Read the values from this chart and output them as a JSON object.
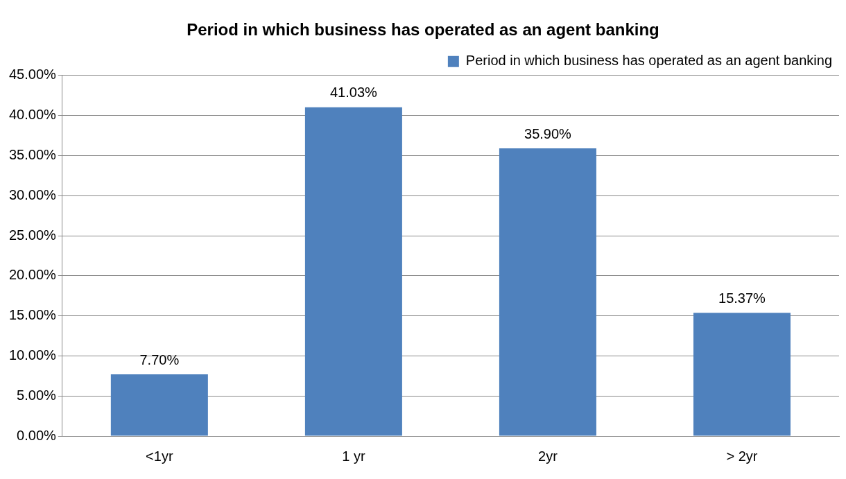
{
  "chart_data": {
    "type": "bar",
    "title": "Period in which business has operated as an agent banking",
    "categories": [
      "<1yr",
      "1 yr",
      "2yr",
      "> 2yr"
    ],
    "series": [
      {
        "name": "Period in which business has operated as an agent banking",
        "color": "#4f81bd",
        "values": [
          7.7,
          41.03,
          35.9,
          15.37
        ],
        "value_labels": [
          "7.70%",
          "41.03%",
          "35.90%",
          "15.37%"
        ]
      }
    ],
    "ylim": [
      0,
      45
    ],
    "yticks": [
      {
        "value": 0,
        "label": "0.00%"
      },
      {
        "value": 5,
        "label": "5.00%"
      },
      {
        "value": 10,
        "label": "10.00%"
      },
      {
        "value": 15,
        "label": "15.00%"
      },
      {
        "value": 20,
        "label": "20.00%"
      },
      {
        "value": 25,
        "label": "25.00%"
      },
      {
        "value": 30,
        "label": "30.00%"
      },
      {
        "value": 35,
        "label": "35.00%"
      },
      {
        "value": 40,
        "label": "40.00%"
      },
      {
        "value": 45,
        "label": "45.00%"
      }
    ],
    "grid": "y",
    "legend": "top right"
  }
}
